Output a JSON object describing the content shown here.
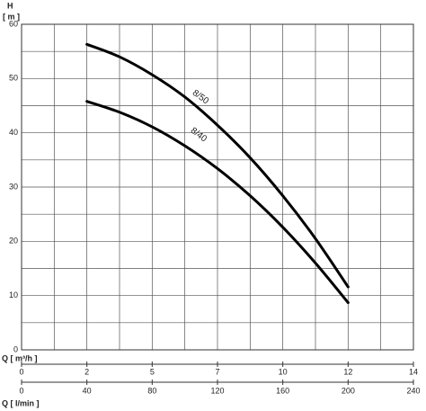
{
  "chart_data": {
    "type": "line",
    "y_label": "H",
    "y_unit": "[ m ]",
    "x_label": "Q [ m³/h ]",
    "x2_label": "Q [ l/min ]",
    "xlim": [
      0,
      240
    ],
    "xticks": [
      0,
      40,
      80,
      120,
      160,
      200,
      240
    ],
    "xminor": [
      20,
      60,
      100,
      140,
      180,
      220
    ],
    "x2lim": [
      0,
      14.4
    ],
    "x2ticks": [
      0,
      {
        "value": 2.4,
        "label": "2"
      },
      {
        "value": 4.8,
        "label": "5"
      },
      {
        "value": 7.2,
        "label": "7"
      },
      {
        "value": 9.6,
        "label": "10"
      },
      12,
      {
        "value": 14.4,
        "label": "14"
      }
    ],
    "ylim": [
      0,
      60
    ],
    "yticks": [
      0,
      10,
      20,
      30,
      40,
      50,
      60
    ],
    "yminor": [
      5,
      15,
      25,
      35,
      45,
      55
    ],
    "grid": true,
    "x": [
      40,
      60,
      80,
      100,
      120,
      140,
      160,
      180,
      200
    ],
    "series": [
      {
        "name": "8/50",
        "color": "#000000",
        "values": [
          56.3,
          54.0,
          50.7,
          46.6,
          41.4,
          35.4,
          28.4,
          20.5,
          11.6
        ]
      },
      {
        "name": "8/40",
        "color": "#000000",
        "values": [
          45.8,
          43.8,
          41.1,
          37.6,
          33.4,
          28.4,
          22.6,
          16.0,
          8.7
        ]
      }
    ]
  }
}
